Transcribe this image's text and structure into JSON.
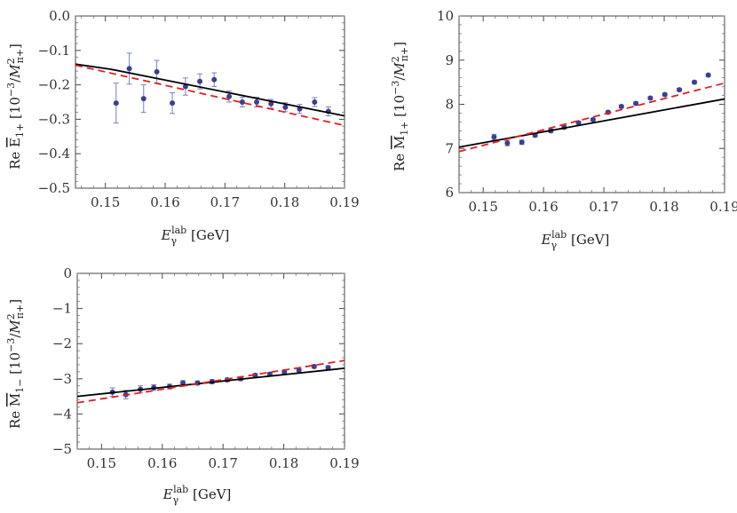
{
  "chart_data": [
    {
      "type": "scatter",
      "ylabel": "Re E̅1+ [10−3/M²π+]",
      "xlabel": "Eγlab [GeV]",
      "xlim": [
        0.145,
        0.19
      ],
      "ylim": [
        -0.5,
        0.0
      ],
      "xticks": [
        0.15,
        0.16,
        0.17,
        0.18,
        0.19
      ],
      "yticks": [
        0.0,
        -0.1,
        -0.2,
        -0.3,
        -0.4,
        -0.5
      ],
      "xtick_labels": [
        "0.15",
        "0.16",
        "0.17",
        "0.18",
        "0.19"
      ],
      "ytick_labels": [
        "0.0",
        "−0.1",
        "−0.2",
        "−0.3",
        "−0.4",
        "−0.5"
      ],
      "series": [
        {
          "kind": "points",
          "color": "#3b3f8f",
          "errcolor": "#7a7fc0",
          "x": [
            0.1518,
            0.154,
            0.1564,
            0.1586,
            0.1612,
            0.1634,
            0.1658,
            0.1682,
            0.1707,
            0.1729,
            0.1753,
            0.1777,
            0.1801,
            0.1825,
            0.185,
            0.1873
          ],
          "y": [
            -0.253,
            -0.153,
            -0.24,
            -0.162,
            -0.253,
            -0.205,
            -0.19,
            -0.185,
            -0.234,
            -0.25,
            -0.25,
            -0.255,
            -0.265,
            -0.27,
            -0.25,
            -0.277
          ],
          "err": [
            0.058,
            0.045,
            0.04,
            0.033,
            0.03,
            0.025,
            0.022,
            0.02,
            0.016,
            0.014,
            0.014,
            0.013,
            0.013,
            0.013,
            0.013,
            0.013
          ]
        },
        {
          "kind": "line",
          "color": "#000000",
          "dash": "",
          "x": [
            0.145,
            0.151,
            0.19
          ],
          "y": [
            -0.14,
            -0.155,
            -0.29
          ]
        },
        {
          "kind": "line",
          "color": "#e02020",
          "dash": "8,5",
          "x": [
            0.145,
            0.19
          ],
          "y": [
            -0.143,
            -0.318
          ]
        }
      ]
    },
    {
      "type": "scatter",
      "ylabel": "Re M̅1+ [10−3/M²π+]",
      "xlabel": "Eγlab [GeV]",
      "xlim": [
        0.146,
        0.19
      ],
      "ylim": [
        6,
        10
      ],
      "xticks": [
        0.15,
        0.16,
        0.17,
        0.18,
        0.19
      ],
      "yticks": [
        6,
        7,
        8,
        9,
        10
      ],
      "xtick_labels": [
        "0.15",
        "0.16",
        "0.17",
        "0.18",
        "0.19"
      ],
      "ytick_labels": [
        "6",
        "7",
        "8",
        "9",
        "10"
      ],
      "series": [
        {
          "kind": "points",
          "color": "#3b3f8f",
          "errcolor": "#7a7fc0",
          "x": [
            0.1518,
            0.154,
            0.1564,
            0.1586,
            0.1612,
            0.1634,
            0.1658,
            0.1682,
            0.1707,
            0.1729,
            0.1753,
            0.1777,
            0.1801,
            0.1825,
            0.185,
            0.1873
          ],
          "y": [
            7.26,
            7.12,
            7.14,
            7.3,
            7.4,
            7.48,
            7.58,
            7.65,
            7.82,
            7.95,
            8.02,
            8.14,
            8.22,
            8.33,
            8.5,
            8.66
          ],
          "err": [
            0.06,
            0.06,
            0.05,
            0.04,
            0.04,
            0.04,
            0.03,
            0.03,
            0.03,
            0.03,
            0.03,
            0.03,
            0.03,
            0.03,
            0.03,
            0.03
          ]
        },
        {
          "kind": "line",
          "color": "#000000",
          "dash": "",
          "x": [
            0.146,
            0.19
          ],
          "y": [
            7.03,
            8.12
          ]
        },
        {
          "kind": "line",
          "color": "#e02020",
          "dash": "8,5",
          "x": [
            0.146,
            0.19
          ],
          "y": [
            6.93,
            8.48
          ]
        }
      ]
    },
    {
      "type": "scatter",
      "ylabel": "Re M̅1− [10−3/M²π+]",
      "xlabel": "Eγlab [GeV]",
      "xlim": [
        0.146,
        0.19
      ],
      "ylim": [
        -5,
        0
      ],
      "xticks": [
        0.15,
        0.16,
        0.17,
        0.18,
        0.19
      ],
      "yticks": [
        0,
        -1,
        -2,
        -3,
        -4,
        -5
      ],
      "xtick_labels": [
        "0.15",
        "0.16",
        "0.17",
        "0.18",
        "0.19"
      ],
      "ytick_labels": [
        "0",
        "−1",
        "−2",
        "−3",
        "−4",
        "−5"
      ],
      "series": [
        {
          "kind": "points",
          "color": "#3b3f8f",
          "errcolor": "#7a7fc0",
          "x": [
            0.1518,
            0.154,
            0.1564,
            0.1586,
            0.1612,
            0.1634,
            0.1658,
            0.1682,
            0.1707,
            0.1729,
            0.1753,
            0.1777,
            0.1801,
            0.1825,
            0.185,
            0.1873
          ],
          "y": [
            -3.38,
            -3.45,
            -3.3,
            -3.25,
            -3.22,
            -3.12,
            -3.12,
            -3.08,
            -3.03,
            -3.0,
            -2.9,
            -2.87,
            -2.8,
            -2.75,
            -2.65,
            -2.68
          ],
          "err": [
            0.12,
            0.12,
            0.1,
            0.08,
            0.07,
            0.07,
            0.06,
            0.06,
            0.05,
            0.05,
            0.05,
            0.05,
            0.05,
            0.05,
            0.05,
            0.05
          ]
        },
        {
          "kind": "line",
          "color": "#000000",
          "dash": "",
          "x": [
            0.146,
            0.19
          ],
          "y": [
            -3.5,
            -2.7
          ]
        },
        {
          "kind": "line",
          "color": "#e02020",
          "dash": "8,5",
          "x": [
            0.146,
            0.19
          ],
          "y": [
            -3.68,
            -2.48
          ]
        }
      ]
    }
  ]
}
